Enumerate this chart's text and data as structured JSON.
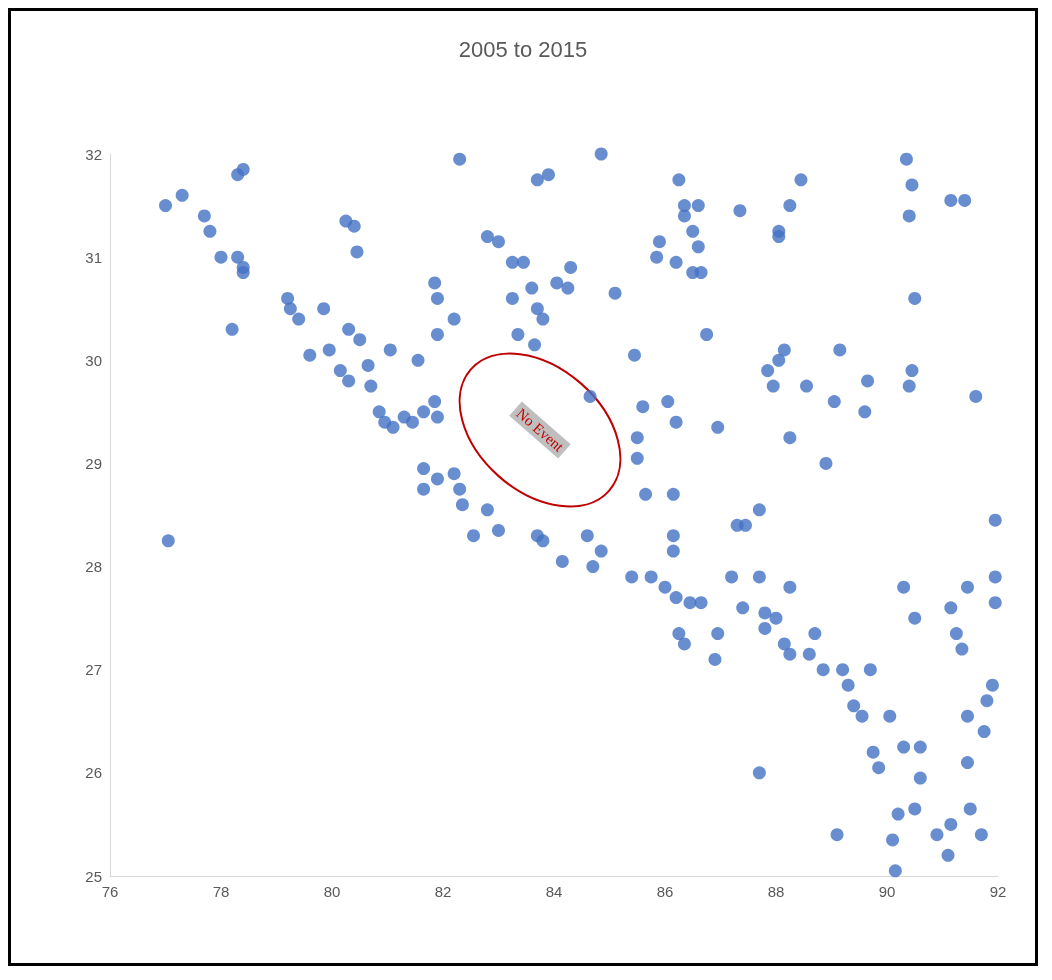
{
  "chart_data": {
    "type": "scatter",
    "title": "2005 to 2015",
    "color": "#4472c4",
    "marker": "circle",
    "grid": false,
    "xlim": [
      76,
      92
    ],
    "xticks": [
      76,
      78,
      80,
      82,
      84,
      86,
      88,
      90,
      92
    ],
    "ylim": [
      25,
      32
    ],
    "yticks": [
      25,
      26,
      27,
      28,
      29,
      30,
      31,
      32
    ],
    "annotations": [
      "No Event"
    ],
    "x": [
      77.0,
      77.3,
      77.7,
      77.8,
      78.0,
      78.3,
      78.2,
      78.3,
      78.4,
      78.4,
      78.4,
      77.05,
      79.2,
      79.25,
      79.4,
      79.85,
      79.6,
      79.95,
      80.15,
      80.3,
      80.25,
      80.4,
      80.45,
      80.3,
      80.5,
      80.65,
      80.7,
      80.85,
      81.05,
      80.95,
      81.1,
      81.3,
      81.45,
      81.65,
      81.85,
      81.9,
      81.55,
      81.9,
      81.85,
      81.9,
      82.2,
      81.65,
      81.65,
      81.9,
      82.2,
      82.3,
      82.35,
      82.55,
      82.8,
      83.0,
      82.3,
      82.8,
      83.0,
      83.25,
      83.45,
      83.25,
      83.35,
      83.6,
      83.7,
      83.8,
      83.65,
      83.7,
      83.9,
      83.7,
      83.8,
      84.15,
      84.25,
      84.3,
      84.05,
      84.65,
      84.6,
      84.7,
      84.85,
      84.85,
      85.1,
      85.45,
      85.5,
      85.5,
      85.6,
      85.65,
      85.4,
      85.75,
      85.9,
      85.85,
      86.05,
      86.2,
      86.15,
      86.15,
      86.15,
      86.0,
      86.2,
      86.25,
      86.35,
      86.25,
      86.2,
      86.35,
      86.35,
      86.5,
      86.6,
      86.5,
      86.6,
      86.65,
      86.45,
      86.65,
      86.75,
      86.9,
      86.95,
      86.95,
      87.2,
      87.3,
      87.35,
      87.4,
      87.45,
      87.7,
      87.7,
      87.7,
      87.8,
      87.8,
      88.0,
      87.85,
      87.95,
      88.05,
      88.15,
      88.05,
      88.05,
      88.15,
      88.25,
      88.25,
      88.25,
      88.25,
      88.45,
      88.55,
      88.6,
      88.7,
      88.85,
      88.9,
      89.05,
      89.15,
      89.1,
      89.2,
      89.3,
      89.4,
      89.55,
      89.65,
      89.6,
      89.7,
      89.75,
      89.85,
      90.05,
      90.1,
      90.2,
      90.15,
      90.3,
      90.3,
      90.35,
      90.4,
      90.45,
      90.4,
      90.45,
      90.5,
      90.5,
      90.5,
      90.6,
      90.6,
      90.9,
      91.15,
      91.1,
      91.15,
      91.25,
      91.35,
      91.4,
      91.15,
      91.45,
      91.45,
      91.45,
      91.5,
      91.6,
      91.7,
      91.75,
      91.8,
      91.9,
      91.95,
      91.95,
      91.95
    ],
    "values": [
      31.5,
      31.6,
      31.4,
      31.25,
      31.0,
      31.0,
      30.3,
      31.8,
      31.85,
      30.9,
      30.85,
      28.25,
      30.6,
      30.5,
      30.4,
      30.5,
      30.05,
      30.1,
      29.9,
      29.8,
      31.35,
      31.3,
      31.05,
      30.3,
      30.2,
      29.95,
      29.75,
      29.5,
      30.1,
      29.4,
      29.35,
      29.45,
      29.4,
      29.5,
      29.6,
      29.45,
      30.0,
      30.25,
      30.75,
      30.6,
      30.4,
      28.95,
      28.75,
      28.85,
      28.9,
      28.75,
      28.6,
      28.3,
      28.55,
      28.35,
      31.95,
      31.2,
      31.15,
      30.95,
      30.95,
      30.6,
      30.25,
      30.7,
      30.5,
      30.4,
      30.15,
      31.75,
      31.8,
      28.3,
      28.25,
      28.05,
      30.7,
      30.9,
      30.75,
      29.65,
      28.3,
      28.0,
      28.15,
      32.0,
      30.65,
      30.05,
      29.25,
      29.05,
      29.55,
      28.7,
      27.9,
      27.9,
      31.15,
      31.0,
      29.6,
      29.4,
      28.7,
      28.3,
      28.15,
      27.8,
      27.7,
      27.35,
      27.25,
      31.75,
      30.95,
      31.5,
      31.4,
      31.25,
      31.1,
      30.85,
      31.5,
      30.85,
      27.65,
      27.65,
      30.25,
      27.1,
      27.35,
      29.35,
      27.9,
      28.4,
      31.45,
      27.6,
      28.4,
      28.55,
      27.9,
      26.0,
      27.55,
      27.4,
      27.5,
      29.9,
      29.75,
      30.0,
      30.1,
      31.25,
      31.2,
      27.25,
      27.15,
      27.8,
      29.25,
      31.5,
      31.75,
      29.75,
      27.15,
      27.35,
      27.0,
      29.0,
      29.6,
      30.1,
      25.4,
      27.0,
      26.85,
      26.65,
      26.55,
      29.8,
      29.5,
      27.0,
      26.2,
      26.05,
      26.55,
      25.35,
      25.6,
      25.05,
      26.25,
      27.8,
      31.95,
      31.4,
      31.7,
      29.75,
      29.9,
      30.6,
      27.5,
      25.65,
      26.25,
      25.95,
      25.4,
      25.5,
      25.2,
      27.6,
      27.35,
      27.2,
      31.55,
      31.55,
      27.8,
      26.55,
      26.1,
      25.65,
      29.65,
      25.4,
      26.4,
      26.7,
      26.85,
      27.9,
      27.65,
      28.45
    ]
  }
}
